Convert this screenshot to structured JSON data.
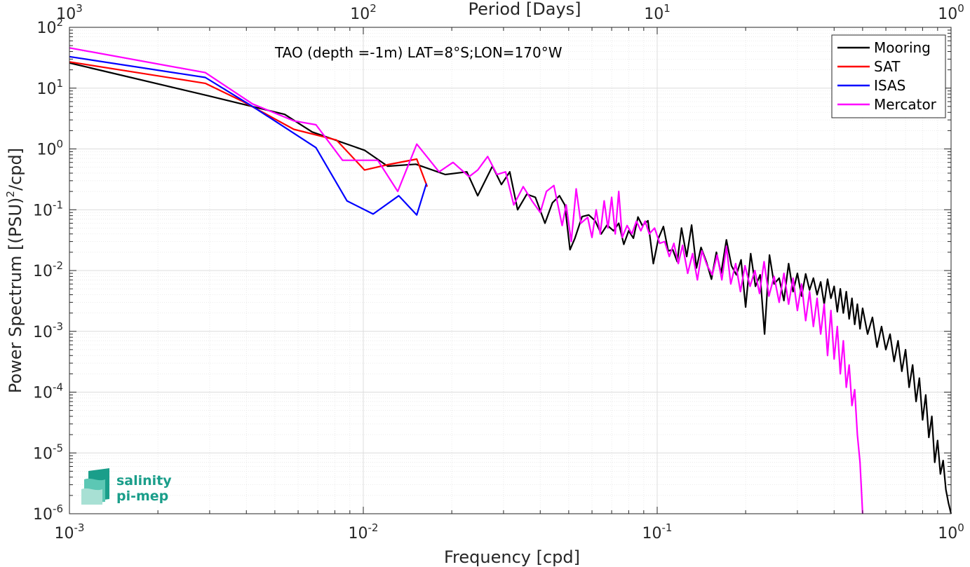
{
  "chart_data": {
    "type": "line",
    "xlabel": "Frequency [cpd]",
    "ylabel": "Power Spectrum [(PSU)",
    "ylabel_sup": "2",
    "ylabel_tail": "/cpd]",
    "top_xlabel": "Period [Days]",
    "annotation": "TAO (depth =-1m) LAT=8°S;LON=170°W",
    "xscale": "log",
    "yscale": "log",
    "xlim": [
      0.001,
      1
    ],
    "ylim": [
      1e-06,
      100
    ],
    "grid": true,
    "minor_grid": true,
    "legend_position": "top-right",
    "x_ticks": [
      {
        "base": "10",
        "exp": "-3",
        "value": 0.001
      },
      {
        "base": "10",
        "exp": "-2",
        "value": 0.01
      },
      {
        "base": "10",
        "exp": "-1",
        "value": 0.1
      },
      {
        "base": "10",
        "exp": "0",
        "value": 1
      }
    ],
    "top_ticks": [
      {
        "base": "10",
        "exp": "3",
        "freq": 0.001
      },
      {
        "base": "10",
        "exp": "2",
        "freq": 0.01
      },
      {
        "base": "10",
        "exp": "1",
        "freq": 0.1
      },
      {
        "base": "10",
        "exp": "0",
        "freq": 1
      }
    ],
    "y_ticks": [
      {
        "base": "10",
        "exp": "2",
        "value": 100
      },
      {
        "base": "10",
        "exp": "1",
        "value": 10
      },
      {
        "base": "10",
        "exp": "0",
        "value": 1
      },
      {
        "base": "10",
        "exp": "-1",
        "value": 0.1
      },
      {
        "base": "10",
        "exp": "-2",
        "value": 0.01
      },
      {
        "base": "10",
        "exp": "-3",
        "value": 0.001
      },
      {
        "base": "10",
        "exp": "-4",
        "value": 0.0001
      },
      {
        "base": "10",
        "exp": "-5",
        "value": 1e-05
      },
      {
        "base": "10",
        "exp": "-6",
        "value": 1e-06
      }
    ],
    "series": [
      {
        "name": "Mooring",
        "color": "#000000",
        "points": [
          [
            0.001,
            26
          ],
          [
            0.00296,
            7.5
          ],
          [
            0.0054,
            3.7
          ],
          [
            0.0067,
            1.9
          ],
          [
            0.0101,
            0.95
          ],
          [
            0.0121,
            0.52
          ],
          [
            0.0151,
            0.56
          ],
          [
            0.019,
            0.38
          ],
          [
            0.0225,
            0.42
          ],
          [
            0.0245,
            0.17
          ],
          [
            0.0275,
            0.52
          ],
          [
            0.0295,
            0.26
          ],
          [
            0.0315,
            0.42
          ],
          [
            0.0335,
            0.1
          ],
          [
            0.036,
            0.18
          ],
          [
            0.0385,
            0.16
          ],
          [
            0.0415,
            0.06
          ],
          [
            0.044,
            0.13
          ],
          [
            0.0465,
            0.17
          ],
          [
            0.0485,
            0.12
          ],
          [
            0.0505,
            0.022
          ],
          [
            0.0525,
            0.034
          ],
          [
            0.0555,
            0.077
          ],
          [
            0.0585,
            0.082
          ],
          [
            0.0615,
            0.066
          ],
          [
            0.0645,
            0.04
          ],
          [
            0.0675,
            0.056
          ],
          [
            0.071,
            0.045
          ],
          [
            0.074,
            0.06
          ],
          [
            0.077,
            0.027
          ],
          [
            0.08,
            0.045
          ],
          [
            0.083,
            0.034
          ],
          [
            0.086,
            0.076
          ],
          [
            0.089,
            0.055
          ],
          [
            0.093,
            0.066
          ],
          [
            0.097,
            0.013
          ],
          [
            0.101,
            0.034
          ],
          [
            0.105,
            0.053
          ],
          [
            0.109,
            0.021
          ],
          [
            0.113,
            0.022
          ],
          [
            0.117,
            0.014
          ],
          [
            0.121,
            0.05
          ],
          [
            0.126,
            0.017
          ],
          [
            0.131,
            0.056
          ],
          [
            0.136,
            0.011
          ],
          [
            0.141,
            0.024
          ],
          [
            0.147,
            0.014
          ],
          [
            0.153,
            0.0072
          ],
          [
            0.159,
            0.02
          ],
          [
            0.165,
            0.009
          ],
          [
            0.172,
            0.032
          ],
          [
            0.179,
            0.012
          ],
          [
            0.186,
            0.0085
          ],
          [
            0.193,
            0.015
          ],
          [
            0.2,
            0.0025
          ],
          [
            0.208,
            0.019
          ],
          [
            0.216,
            0.0055
          ],
          [
            0.224,
            0.0085
          ],
          [
            0.232,
            0.0009
          ],
          [
            0.241,
            0.018
          ],
          [
            0.25,
            0.006
          ],
          [
            0.26,
            0.0075
          ],
          [
            0.27,
            0.0032
          ],
          [
            0.28,
            0.013
          ],
          [
            0.29,
            0.0045
          ],
          [
            0.3,
            0.009
          ],
          [
            0.31,
            0.0038
          ],
          [
            0.32,
            0.0088
          ],
          [
            0.33,
            0.0048
          ],
          [
            0.34,
            0.0075
          ],
          [
            0.35,
            0.004
          ],
          [
            0.36,
            0.0065
          ],
          [
            0.37,
            0.0028
          ],
          [
            0.38,
            0.0072
          ],
          [
            0.39,
            0.0035
          ],
          [
            0.4,
            0.0055
          ],
          [
            0.41,
            0.0021
          ],
          [
            0.42,
            0.005
          ],
          [
            0.43,
            0.002
          ],
          [
            0.44,
            0.0045
          ],
          [
            0.45,
            0.0016
          ],
          [
            0.46,
            0.0035
          ],
          [
            0.47,
            0.0013
          ],
          [
            0.48,
            0.0028
          ],
          [
            0.49,
            0.0011
          ],
          [
            0.5,
            0.0024
          ],
          [
            0.52,
            0.0009
          ],
          [
            0.54,
            0.0017
          ],
          [
            0.56,
            0.00055
          ],
          [
            0.58,
            0.0012
          ],
          [
            0.6,
            0.0005
          ],
          [
            0.62,
            0.0009
          ],
          [
            0.64,
            0.00032
          ],
          [
            0.66,
            0.0007
          ],
          [
            0.68,
            0.00022
          ],
          [
            0.7,
            0.0005
          ],
          [
            0.72,
            0.00012
          ],
          [
            0.74,
            0.00028
          ],
          [
            0.76,
            7e-05
          ],
          [
            0.78,
            0.00017
          ],
          [
            0.8,
            3.5e-05
          ],
          [
            0.82,
            9e-05
          ],
          [
            0.84,
            1.8e-05
          ],
          [
            0.86,
            4e-05
          ],
          [
            0.88,
            7e-06
          ],
          [
            0.9,
            1.6e-05
          ],
          [
            0.92,
            4.5e-06
          ],
          [
            0.94,
            7.5e-06
          ],
          [
            0.96,
            2.5e-06
          ],
          [
            0.98,
            1.5e-06
          ],
          [
            1.0,
            1e-06
          ]
        ]
      },
      {
        "name": "SAT",
        "color": "#ff0000",
        "points": [
          [
            0.001,
            27
          ],
          [
            0.0029,
            12
          ],
          [
            0.0039,
            6
          ],
          [
            0.0058,
            2.1
          ],
          [
            0.0081,
            1.4
          ],
          [
            0.0101,
            0.45
          ],
          [
            0.0121,
            0.55
          ],
          [
            0.0152,
            0.68
          ],
          [
            0.0165,
            0.24
          ]
        ]
      },
      {
        "name": "ISAS",
        "color": "#0000ff",
        "points": [
          [
            0.001,
            33
          ],
          [
            0.0029,
            15
          ],
          [
            0.0042,
            5
          ],
          [
            0.0069,
            1.05
          ],
          [
            0.0088,
            0.14
          ],
          [
            0.0108,
            0.085
          ],
          [
            0.0132,
            0.17
          ],
          [
            0.0152,
            0.082
          ],
          [
            0.0164,
            0.27
          ]
        ]
      },
      {
        "name": "Mercator",
        "color": "#ff00ff",
        "points": [
          [
            0.001,
            46
          ],
          [
            0.0029,
            18
          ],
          [
            0.0042,
            5.5
          ],
          [
            0.0058,
            2.9
          ],
          [
            0.0069,
            2.5
          ],
          [
            0.0085,
            0.65
          ],
          [
            0.0112,
            0.65
          ],
          [
            0.0131,
            0.2
          ],
          [
            0.0152,
            1.2
          ],
          [
            0.0181,
            0.42
          ],
          [
            0.0202,
            0.6
          ],
          [
            0.0229,
            0.35
          ],
          [
            0.0245,
            0.45
          ],
          [
            0.0265,
            0.75
          ],
          [
            0.0285,
            0.38
          ],
          [
            0.0305,
            0.42
          ],
          [
            0.0325,
            0.12
          ],
          [
            0.035,
            0.24
          ],
          [
            0.0375,
            0.14
          ],
          [
            0.04,
            0.09
          ],
          [
            0.042,
            0.2
          ],
          [
            0.0445,
            0.25
          ],
          [
            0.0465,
            0.09
          ],
          [
            0.0475,
            0.055
          ],
          [
            0.049,
            0.12
          ],
          [
            0.051,
            0.03
          ],
          [
            0.053,
            0.22
          ],
          [
            0.055,
            0.06
          ],
          [
            0.058,
            0.075
          ],
          [
            0.06,
            0.035
          ],
          [
            0.062,
            0.1
          ],
          [
            0.064,
            0.04
          ],
          [
            0.066,
            0.14
          ],
          [
            0.068,
            0.05
          ],
          [
            0.07,
            0.16
          ],
          [
            0.072,
            0.04
          ],
          [
            0.074,
            0.2
          ],
          [
            0.076,
            0.035
          ],
          [
            0.079,
            0.055
          ],
          [
            0.082,
            0.04
          ],
          [
            0.085,
            0.065
          ],
          [
            0.088,
            0.045
          ],
          [
            0.091,
            0.065
          ],
          [
            0.094,
            0.04
          ],
          [
            0.098,
            0.05
          ],
          [
            0.102,
            0.028
          ],
          [
            0.106,
            0.03
          ],
          [
            0.11,
            0.017
          ],
          [
            0.114,
            0.028
          ],
          [
            0.118,
            0.013
          ],
          [
            0.122,
            0.026
          ],
          [
            0.127,
            0.009
          ],
          [
            0.132,
            0.019
          ],
          [
            0.137,
            0.007
          ],
          [
            0.142,
            0.021
          ],
          [
            0.148,
            0.012
          ],
          [
            0.154,
            0.0085
          ],
          [
            0.16,
            0.018
          ],
          [
            0.166,
            0.007
          ],
          [
            0.172,
            0.025
          ],
          [
            0.178,
            0.006
          ],
          [
            0.185,
            0.013
          ],
          [
            0.192,
            0.0045
          ],
          [
            0.199,
            0.012
          ],
          [
            0.207,
            0.0055
          ],
          [
            0.215,
            0.01
          ],
          [
            0.223,
            0.0042
          ],
          [
            0.231,
            0.014
          ],
          [
            0.24,
            0.0038
          ],
          [
            0.25,
            0.008
          ],
          [
            0.26,
            0.003
          ],
          [
            0.27,
            0.009
          ],
          [
            0.28,
            0.0028
          ],
          [
            0.29,
            0.0075
          ],
          [
            0.3,
            0.0022
          ],
          [
            0.31,
            0.006
          ],
          [
            0.32,
            0.0015
          ],
          [
            0.33,
            0.0045
          ],
          [
            0.34,
            0.0012
          ],
          [
            0.35,
            0.0035
          ],
          [
            0.36,
            0.0009
          ],
          [
            0.37,
            0.0028
          ],
          [
            0.38,
            0.0004
          ],
          [
            0.39,
            0.0022
          ],
          [
            0.4,
            0.00035
          ],
          [
            0.41,
            0.0012
          ],
          [
            0.42,
            0.0002
          ],
          [
            0.43,
            0.0007
          ],
          [
            0.44,
            0.00012
          ],
          [
            0.45,
            0.00028
          ],
          [
            0.46,
            6e-05
          ],
          [
            0.47,
            0.00011
          ],
          [
            0.48,
            2e-05
          ],
          [
            0.49,
            7e-06
          ],
          [
            0.5,
            1e-06
          ]
        ]
      }
    ]
  },
  "logo": {
    "line1": "salinity",
    "line2": "pi-mep"
  }
}
